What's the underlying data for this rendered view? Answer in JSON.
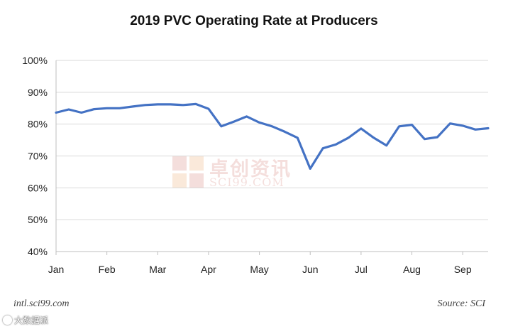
{
  "chart_data": {
    "type": "line",
    "title": "2019 PVC Operating Rate at Producers",
    "xlabel": "",
    "ylabel": "",
    "ylim": [
      40,
      100
    ],
    "yticks": [
      40,
      50,
      60,
      70,
      80,
      90,
      100
    ],
    "ytick_labels": [
      "40%",
      "50%",
      "60%",
      "70%",
      "80%",
      "90%",
      "100%"
    ],
    "xtick_labels": [
      "Jan",
      "Feb",
      "Mar",
      "Apr",
      "May",
      "Jun",
      "Jul",
      "Aug",
      "Sep"
    ],
    "xtick_positions": [
      0,
      4,
      8,
      12,
      16,
      20,
      24,
      28,
      32
    ],
    "grid": true,
    "series": [
      {
        "name": "PVC Operating Rate",
        "color": "#4472C4",
        "x": [
          0,
          1,
          2,
          3,
          4,
          5,
          6,
          7,
          8,
          9,
          10,
          11,
          12,
          13,
          14,
          15,
          16,
          17,
          18,
          19,
          20,
          21,
          22,
          23,
          24,
          25,
          26,
          27,
          28,
          29,
          30,
          31,
          32,
          33,
          34
        ],
        "values": [
          83.6,
          84.6,
          83.6,
          84.7,
          85,
          85,
          85.5,
          86,
          86.2,
          86.2,
          86,
          86.3,
          84.8,
          79.3,
          80.8,
          82.4,
          80.5,
          79.3,
          77.6,
          75.7,
          66,
          72.4,
          73.6,
          75.7,
          78.6,
          75.7,
          73.3,
          79.3,
          79.8,
          75.3,
          75.9,
          80.2,
          79.5,
          78.3,
          78.7
        ]
      }
    ]
  },
  "watermark": {
    "cn_text": "卓创资讯",
    "en_text": "SCI99.COM"
  },
  "footer": {
    "site": "intl.sci99.com",
    "source": "Source: SCI",
    "corner_mark": "大数据派"
  },
  "colors": {
    "line": "#4472C4",
    "grid": "#d9d9d9",
    "axis": "#bfbfbf"
  }
}
